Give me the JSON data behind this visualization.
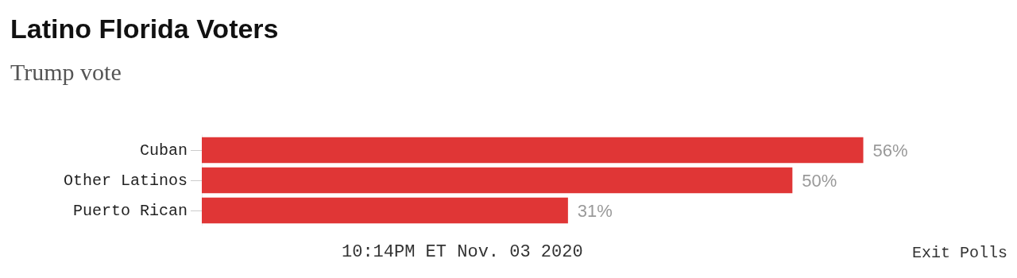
{
  "chart_data": {
    "type": "bar",
    "orientation": "horizontal",
    "title": "Latino Florida Voters",
    "subtitle": "Trump vote",
    "categories": [
      "Cuban",
      "Other Latinos",
      "Puerto Rican"
    ],
    "values": [
      56,
      50,
      31
    ],
    "color": "#e03636",
    "value_labels": [
      "56%",
      "50%",
      "31%"
    ],
    "annotations": [
      "10:14PM ET Nov. 03 2020",
      "Exit Polls"
    ]
  }
}
